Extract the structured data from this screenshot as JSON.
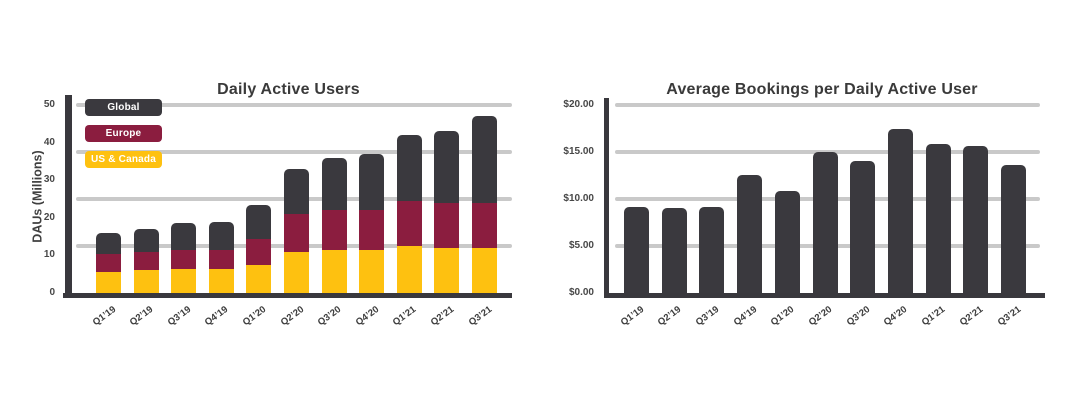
{
  "page": {
    "background": "#ffffff"
  },
  "colors": {
    "bar_dark": "#3a393e",
    "europe_maroon": "#8b1d3f",
    "us_canada_gold": "#fec110",
    "gridline": "#c9c9c9",
    "axis": "#39383d",
    "title_text": "#3a3a3a",
    "tick_text": "#474747"
  },
  "chart_data": [
    {
      "type": "bar",
      "subtype": "stacked",
      "title": "Daily Active Users",
      "ylabel": "DAUs (Millions)",
      "xlabel": "",
      "legend_position": "top-left-inside",
      "grid": "horizontal",
      "categories": [
        "Q1’19",
        "Q2’19",
        "Q3’19",
        "Q4’19",
        "Q1’20",
        "Q2’20",
        "Q3’20",
        "Q4’20",
        "Q1’21",
        "Q2’21",
        "Q3’21"
      ],
      "series": [
        {
          "name": "US & Canada",
          "color": "#fec110",
          "values": [
            5.5,
            6,
            6.5,
            6.5,
            7.5,
            11,
            11.5,
            11.5,
            12.5,
            12,
            12
          ]
        },
        {
          "name": "Europe",
          "color": "#8b1d3f",
          "values": [
            5,
            5,
            5,
            5,
            7,
            10,
            10.5,
            10.5,
            12,
            12,
            12
          ]
        },
        {
          "name": "Global",
          "color": "#3a393e",
          "values": [
            5.5,
            6,
            7,
            7.5,
            9,
            12,
            14,
            15,
            17.5,
            19,
            23
          ]
        }
      ],
      "totals": [
        16,
        17,
        18.5,
        19,
        23.5,
        33,
        36,
        37,
        42,
        43,
        47
      ],
      "legend": [
        {
          "label": "Global",
          "color": "#3a393e"
        },
        {
          "label": "Europe",
          "color": "#8b1d3f"
        },
        {
          "label": "US & Canada",
          "color": "#fec110"
        }
      ],
      "y_axis": {
        "max": 50,
        "ylim": [
          0,
          50
        ],
        "ticks": [
          {
            "label": "0",
            "value": 0
          },
          {
            "label": "10",
            "value": 10
          },
          {
            "label": "20",
            "value": 20
          },
          {
            "label": "30",
            "value": 30
          },
          {
            "label": "40",
            "value": 40
          },
          {
            "label": "50",
            "value": 50
          }
        ],
        "gridlines": [
          12.5,
          25,
          37.5,
          50
        ]
      }
    },
    {
      "type": "bar",
      "subtype": "single",
      "title": "Average Bookings per Daily Active User",
      "ylabel": "",
      "xlabel": "",
      "grid": "horizontal",
      "categories": [
        "Q1’19",
        "Q2’19",
        "Q3’19",
        "Q4’19",
        "Q1’20",
        "Q2’20",
        "Q3’20",
        "Q4’20",
        "Q1’21",
        "Q2’21",
        "Q3’21"
      ],
      "values": [
        9.2,
        9.0,
        9.2,
        12.6,
        10.9,
        15.0,
        14.0,
        17.5,
        15.8,
        15.6,
        13.6
      ],
      "bar_color": "#3a393e",
      "y_axis": {
        "max": 20,
        "ylim": [
          0,
          20
        ],
        "ticks": [
          {
            "label": "$0.00",
            "value": 0
          },
          {
            "label": "$5.00",
            "value": 5
          },
          {
            "label": "$10.00",
            "value": 10
          },
          {
            "label": "$15.00",
            "value": 15
          },
          {
            "label": "$20.00",
            "value": 20
          }
        ],
        "gridlines": [
          5,
          10,
          15,
          20
        ]
      }
    }
  ]
}
